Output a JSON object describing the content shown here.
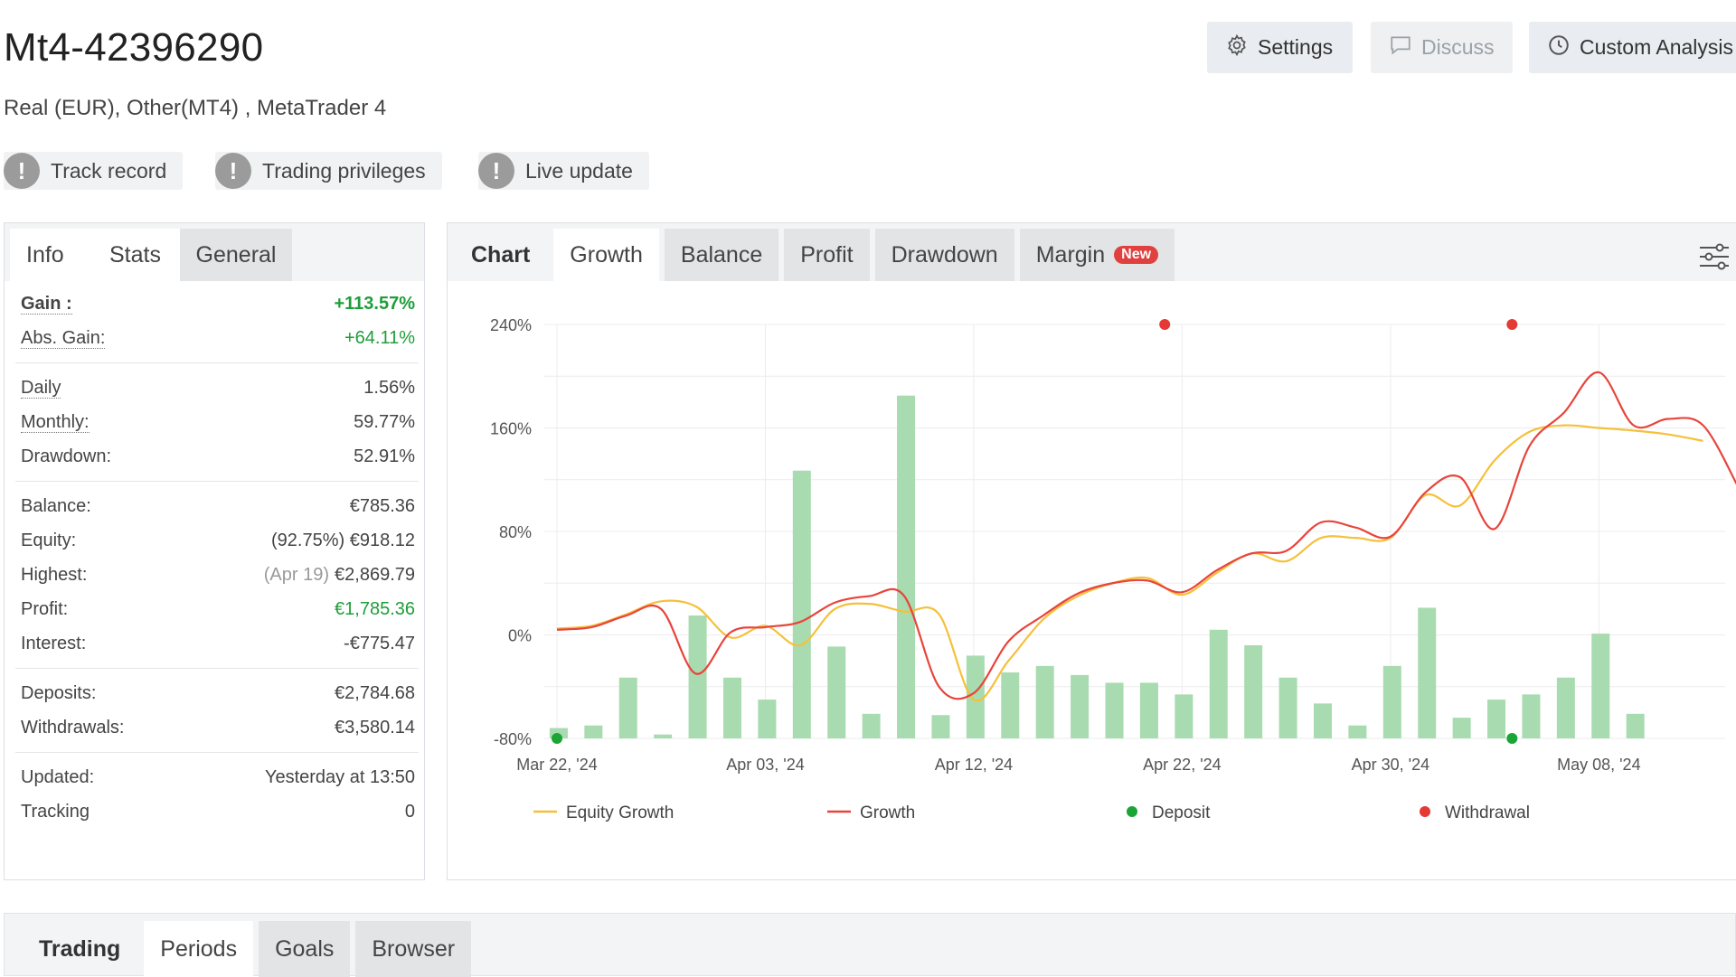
{
  "header": {
    "title": "Mt4-42396290",
    "subtitle": "Real (EUR), Other(MT4) , MetaTrader 4",
    "buttons": {
      "settings": "Settings",
      "discuss": "Discuss",
      "custom": "Custom Analysis"
    }
  },
  "badges": [
    "Track record",
    "Trading privileges",
    "Live update"
  ],
  "stats_panel": {
    "tabs": {
      "info": "Info",
      "stats": "Stats",
      "general": "General"
    },
    "gain": {
      "label": "Gain :",
      "value": "+113.57%"
    },
    "abs_gain": {
      "label": "Abs. Gain:",
      "value": "+64.11%"
    },
    "daily": {
      "label": "Daily",
      "value": "1.56%"
    },
    "monthly": {
      "label": "Monthly:",
      "value": "59.77%"
    },
    "drawdown": {
      "label": "Drawdown:",
      "value": "52.91%"
    },
    "balance": {
      "label": "Balance:",
      "value": "€785.36"
    },
    "equity": {
      "label": "Equity:",
      "pct": "(92.75%)",
      "value": "€918.12"
    },
    "highest": {
      "label": "Highest:",
      "date": "(Apr 19)",
      "value": "€2,869.79"
    },
    "profit": {
      "label": "Profit:",
      "value": "€1,785.36"
    },
    "interest": {
      "label": "Interest:",
      "value": "-€775.47"
    },
    "deposits": {
      "label": "Deposits:",
      "value": "€2,784.68"
    },
    "withdrawals": {
      "label": "Withdrawals:",
      "value": "€3,580.14"
    },
    "updated": {
      "label": "Updated:",
      "value": "Yesterday at 13:50"
    },
    "tracking": {
      "label": "Tracking",
      "value": "0"
    }
  },
  "chart_panel": {
    "tabs": {
      "chart": "Chart",
      "growth": "Growth",
      "balance": "Balance",
      "profit": "Profit",
      "drawdown": "Drawdown",
      "margin": "Margin",
      "new_badge": "New"
    }
  },
  "chart_data": {
    "type": "line",
    "x_ticks": [
      "Mar 22, '24",
      "Apr 03, '24",
      "Apr 12, '24",
      "Apr 22, '24",
      "Apr 30, '24",
      "May 08, '24"
    ],
    "y_ticks": [
      "240%",
      "160%",
      "80%",
      "0%",
      "-80%"
    ],
    "ylim": [
      -80,
      240
    ],
    "grid": true,
    "legend_position": "bottom",
    "series": [
      {
        "name": "Equity Growth",
        "color": "#f5c03a",
        "points": [
          [
            0,
            5
          ],
          [
            1,
            7
          ],
          [
            2,
            16
          ],
          [
            3,
            26
          ],
          [
            4,
            22
          ],
          [
            5,
            -2
          ],
          [
            6,
            7
          ],
          [
            7,
            -8
          ],
          [
            8,
            20
          ],
          [
            9,
            24
          ],
          [
            10,
            18
          ],
          [
            11,
            16
          ],
          [
            12,
            -50
          ],
          [
            13,
            -20
          ],
          [
            14,
            12
          ],
          [
            15,
            30
          ],
          [
            16,
            40
          ],
          [
            17,
            44
          ],
          [
            18,
            31
          ],
          [
            19,
            48
          ],
          [
            20,
            63
          ],
          [
            21,
            57
          ],
          [
            22,
            75
          ],
          [
            23,
            75
          ],
          [
            24,
            75
          ],
          [
            25,
            108
          ],
          [
            26,
            100
          ],
          [
            27,
            135
          ],
          [
            28,
            157
          ],
          [
            29,
            162
          ],
          [
            30,
            160
          ],
          [
            31,
            158
          ],
          [
            32,
            155
          ],
          [
            33,
            150
          ]
        ]
      },
      {
        "name": "Growth",
        "color": "#e8443b",
        "points": [
          [
            0,
            4
          ],
          [
            1,
            6
          ],
          [
            2,
            15
          ],
          [
            3,
            20
          ],
          [
            4,
            -30
          ],
          [
            5,
            2
          ],
          [
            6,
            6
          ],
          [
            7,
            10
          ],
          [
            8,
            25
          ],
          [
            9,
            30
          ],
          [
            10,
            30
          ],
          [
            11,
            -40
          ],
          [
            12,
            -45
          ],
          [
            13,
            -5
          ],
          [
            14,
            15
          ],
          [
            15,
            32
          ],
          [
            16,
            40
          ],
          [
            17,
            42
          ],
          [
            18,
            33
          ],
          [
            19,
            50
          ],
          [
            20,
            63
          ],
          [
            21,
            65
          ],
          [
            22,
            87
          ],
          [
            23,
            83
          ],
          [
            24,
            76
          ],
          [
            25,
            110
          ],
          [
            26,
            122
          ],
          [
            27,
            82
          ],
          [
            28,
            146
          ],
          [
            29,
            172
          ],
          [
            30,
            203
          ],
          [
            31,
            162
          ],
          [
            32,
            167
          ],
          [
            33,
            162
          ],
          [
            34,
            115
          ]
        ]
      },
      {
        "name": "Deposit",
        "color": "#1aa534",
        "points": [
          [
            0,
            -80
          ],
          [
            27.5,
            -80
          ]
        ]
      },
      {
        "name": "Withdrawal",
        "color": "#e53935",
        "points": [
          [
            17.5,
            240
          ],
          [
            27.5,
            240
          ]
        ]
      }
    ],
    "bars": {
      "color": "#a9dbb0",
      "values": [
        -72,
        -70,
        -33,
        -77,
        15,
        -33,
        -50,
        127,
        -9,
        -61,
        185,
        -62,
        -16,
        -29,
        -24,
        -31,
        -37,
        -37,
        -46,
        4,
        -8,
        -33,
        -53,
        -70,
        -24,
        21,
        -64,
        -50,
        -46,
        -33,
        1,
        -61
      ]
    }
  },
  "bottom_panel": {
    "tabs": {
      "trading": "Trading",
      "periods": "Periods",
      "goals": "Goals",
      "browser": "Browser"
    }
  }
}
